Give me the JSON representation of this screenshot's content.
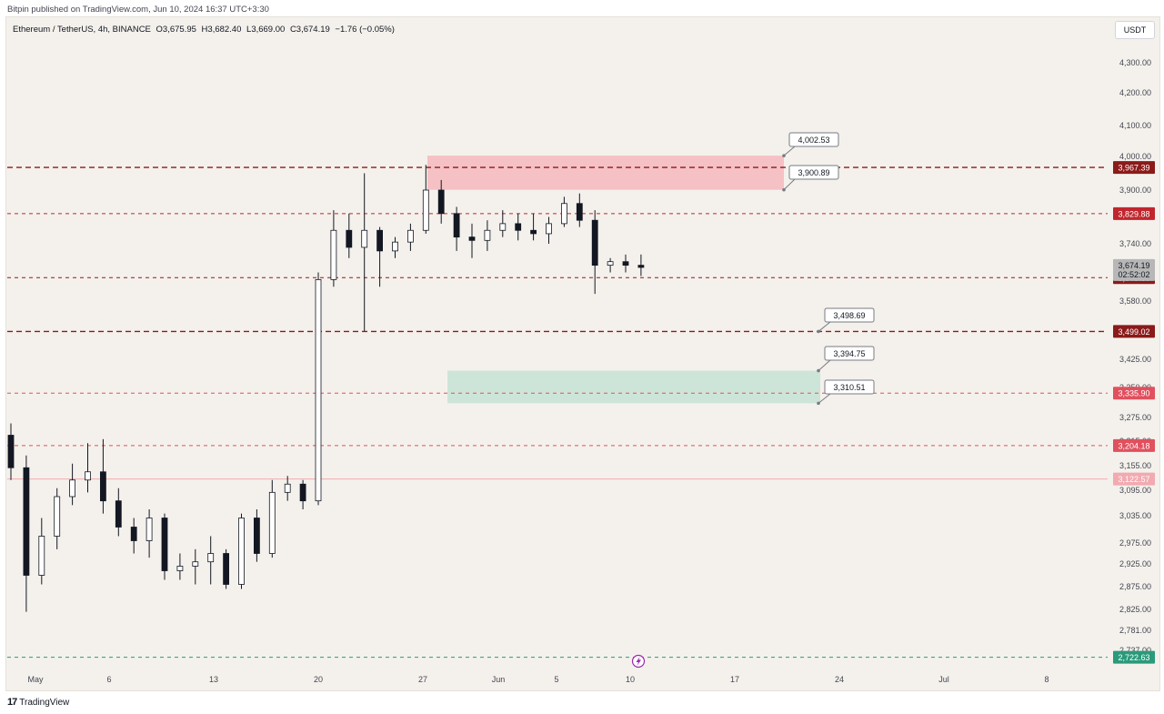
{
  "topline": "Bitpin published on TradingView.com, Jun 10, 2024 16:37 UTC+3:30",
  "header": {
    "symbol": "Ethereum / TetherUS, 4h, BINANCE",
    "open": "O3,675.95",
    "high": "H3,682.40",
    "low": "L3,669.00",
    "close": "C3,674.19",
    "change": "−1.76 (−0.05%)"
  },
  "currency_button": "USDT",
  "footer": {
    "logo_text": "TradingView",
    "logo_icon": "tradingview-logo-icon"
  },
  "colors": {
    "up": "#131722",
    "down": "#131722",
    "resistance_zone": "#f4b8bd",
    "support_zone": "#c5e3d6",
    "dark_red": "#8b1a1a",
    "red": "#d7263d",
    "green_label": "#2a9a7a",
    "pink_line": "#f2aab1",
    "current_label": "#b7b7b7"
  },
  "chart_data": {
    "type": "candlestick",
    "timeframe": "4h",
    "y_axis": {
      "ticks": [
        "4,300.00",
        "4,200.00",
        "4,100.00",
        "4,000.00",
        "3,900.00",
        "3,740.00",
        "3,580.00",
        "3,425.00",
        "3,350.00",
        "3,275.00",
        "3,215.00",
        "3,155.00",
        "3,095.00",
        "3,035.00",
        "2,975.00",
        "2,925.00",
        "2,875.00",
        "2,825.00",
        "2,781.00",
        "2,737.00"
      ]
    },
    "x_axis": {
      "ticks": [
        "May",
        "6",
        "13",
        "20",
        "27",
        "Jun",
        "5",
        "10",
        "17",
        "24",
        "Jul",
        "8"
      ]
    },
    "horizontal_lines": [
      {
        "label": "3,967.39",
        "price": 3967.39,
        "style": "dashed-bold",
        "color": "#8b1a1a"
      },
      {
        "label": "3,829.88",
        "price": 3829.88,
        "style": "dashed",
        "color": "#c0262d"
      },
      {
        "label": "3,645.30",
        "price": 3645.3,
        "style": "dashed",
        "color": "#8b1a1a"
      },
      {
        "label": "3,499.02",
        "price": 3499.02,
        "style": "dashed-bold",
        "color": "#8b1a1a"
      },
      {
        "label": "3,335.90",
        "price": 3335.9,
        "style": "dashed",
        "color": "#e0505e"
      },
      {
        "label": "3,204.18",
        "price": 3204.18,
        "style": "dashed",
        "color": "#e0505e"
      },
      {
        "label": "3,122.57",
        "price": 3122.57,
        "style": "solid",
        "color": "#f2aab1"
      },
      {
        "label": "2,722.63",
        "price": 2722.63,
        "style": "dashed",
        "color": "#2a9a7a"
      }
    ],
    "current_price": {
      "label": "3,674.19",
      "price": 3674.19,
      "countdown": "02:52:02"
    },
    "zones": [
      {
        "name": "resistance",
        "top": 4002.53,
        "bottom": 3900.89
      },
      {
        "name": "support",
        "top": 3394.75,
        "bottom": 3310.51
      }
    ],
    "callouts": [
      "4,002.53",
      "3,900.89",
      "3,498.69",
      "3,394.75",
      "3,310.51"
    ],
    "ohlc_path": [
      [
        "Apr 30",
        3230,
        3260,
        3120,
        3150
      ],
      [
        "May 1",
        3150,
        3180,
        2820,
        2900
      ],
      [
        "May 2",
        2900,
        3030,
        2880,
        2990
      ],
      [
        "May 3",
        2990,
        3100,
        2960,
        3080
      ],
      [
        "May 4",
        3080,
        3160,
        3060,
        3120
      ],
      [
        "May 5",
        3120,
        3210,
        3090,
        3140
      ],
      [
        "May 6",
        3140,
        3220,
        3040,
        3070
      ],
      [
        "May 7",
        3070,
        3100,
        2990,
        3010
      ],
      [
        "May 8",
        3010,
        3030,
        2950,
        2980
      ],
      [
        "May 9",
        2980,
        3050,
        2940,
        3030
      ],
      [
        "May 10",
        3030,
        3040,
        2890,
        2910
      ],
      [
        "May 11",
        2910,
        2950,
        2890,
        2920
      ],
      [
        "May 12",
        2920,
        2960,
        2880,
        2930
      ],
      [
        "May 13",
        2930,
        2990,
        2880,
        2950
      ],
      [
        "May 14",
        2950,
        2960,
        2870,
        2880
      ],
      [
        "May 15",
        2880,
        3040,
        2870,
        3030
      ],
      [
        "May 16",
        3030,
        3050,
        2930,
        2950
      ],
      [
        "May 17",
        2950,
        3120,
        2940,
        3090
      ],
      [
        "May 18",
        3090,
        3130,
        3070,
        3110
      ],
      [
        "May 19",
        3110,
        3120,
        3050,
        3070
      ],
      [
        "May 20",
        3070,
        3660,
        3060,
        3640
      ],
      [
        "May 21",
        3640,
        3840,
        3620,
        3780
      ],
      [
        "May 22",
        3780,
        3830,
        3700,
        3730
      ],
      [
        "May 23",
        3730,
        3950,
        3500,
        3780
      ],
      [
        "May 24",
        3780,
        3790,
        3620,
        3720
      ],
      [
        "May 25",
        3720,
        3760,
        3700,
        3745
      ],
      [
        "May 26",
        3745,
        3800,
        3720,
        3780
      ],
      [
        "May 27",
        3780,
        3975,
        3770,
        3900
      ],
      [
        "May 28",
        3900,
        3930,
        3800,
        3830
      ],
      [
        "May 29",
        3830,
        3850,
        3720,
        3760
      ],
      [
        "May 30",
        3760,
        3800,
        3700,
        3750
      ],
      [
        "May 31",
        3750,
        3810,
        3720,
        3780
      ],
      [
        "Jun 1",
        3780,
        3840,
        3760,
        3800
      ],
      [
        "Jun 2",
        3800,
        3830,
        3750,
        3780
      ],
      [
        "Jun 3",
        3780,
        3830,
        3750,
        3770
      ],
      [
        "Jun 4",
        3770,
        3820,
        3740,
        3800
      ],
      [
        "Jun 5",
        3800,
        3880,
        3790,
        3860
      ],
      [
        "Jun 6",
        3860,
        3890,
        3790,
        3810
      ],
      [
        "Jun 7",
        3810,
        3840,
        3600,
        3680
      ],
      [
        "Jun 8",
        3680,
        3700,
        3660,
        3690
      ],
      [
        "Jun 9",
        3690,
        3710,
        3660,
        3680
      ],
      [
        "Jun 10",
        3680,
        3710,
        3650,
        3674
      ]
    ]
  }
}
